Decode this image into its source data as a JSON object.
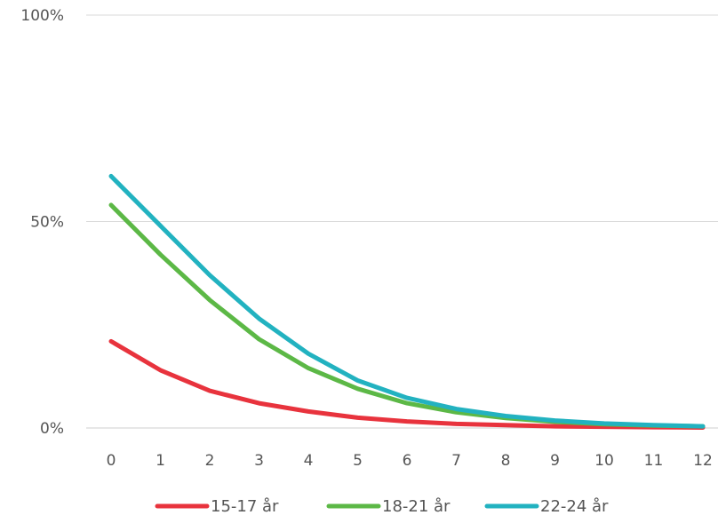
{
  "chart_data": {
    "type": "line",
    "title": "",
    "xlabel": "",
    "ylabel": "",
    "x": [
      0,
      1,
      2,
      3,
      4,
      5,
      6,
      7,
      8,
      9,
      10,
      11,
      12
    ],
    "ylim": [
      0,
      100
    ],
    "yticks": [
      0,
      50,
      100
    ],
    "ytick_labels": [
      "0%",
      "50%",
      "100%"
    ],
    "xtick_labels": [
      "0",
      "1",
      "2",
      "3",
      "4",
      "5",
      "6",
      "7",
      "8",
      "9",
      "10",
      "11",
      "12"
    ],
    "grid": true,
    "legend_position": "bottom",
    "series": [
      {
        "name": "15-17 år",
        "color": "#e8333d",
        "values": [
          21,
          14,
          9,
          6,
          4,
          2.5,
          1.6,
          1,
          0.7,
          0.4,
          0.3,
          0.2,
          0.1
        ]
      },
      {
        "name": "18-21 år",
        "color": "#5cb846",
        "values": [
          54,
          42,
          31,
          21.5,
          14.5,
          9.5,
          6,
          3.8,
          2.4,
          1.5,
          0.9,
          0.6,
          0.4
        ]
      },
      {
        "name": "22-24 år",
        "color": "#22b2c0",
        "values": [
          61,
          49,
          37,
          26.5,
          18,
          11.5,
          7.3,
          4.6,
          2.9,
          1.8,
          1.1,
          0.7,
          0.4
        ]
      }
    ]
  }
}
